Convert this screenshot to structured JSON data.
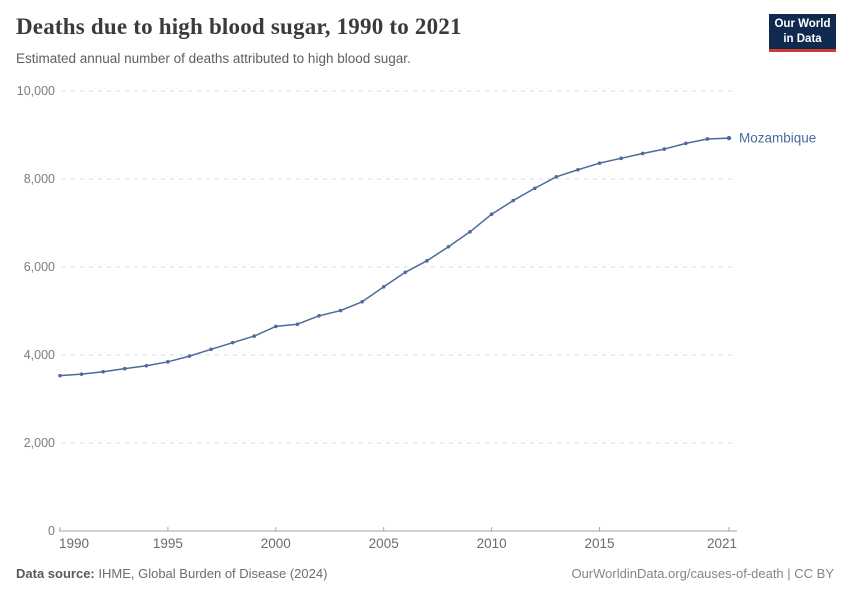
{
  "header": {
    "title": "Deaths due to high blood sugar, 1990 to 2021",
    "subtitle": "Estimated annual number of deaths attributed to high blood sugar."
  },
  "logo": {
    "line1": "Our World",
    "line2": "in Data",
    "bg_color": "#10294e",
    "accent_color": "#cf3a34"
  },
  "chart_data": {
    "type": "line",
    "title": "Deaths due to high blood sugar, 1990 to 2021",
    "subtitle": "Estimated annual number of deaths attributed to high blood sugar.",
    "xlabel": "",
    "ylabel": "",
    "xlim": [
      1990,
      2021
    ],
    "ylim": [
      0,
      10000
    ],
    "x_ticks": [
      1990,
      1995,
      2000,
      2005,
      2010,
      2015,
      2021
    ],
    "y_ticks": [
      0,
      2000,
      4000,
      6000,
      8000,
      10000
    ],
    "grid": "horizontal-dashed",
    "legend_position": "end-of-line",
    "x": [
      1990,
      1991,
      1992,
      1993,
      1994,
      1995,
      1996,
      1997,
      1998,
      1999,
      2000,
      2001,
      2002,
      2003,
      2004,
      2005,
      2006,
      2007,
      2008,
      2009,
      2010,
      2011,
      2012,
      2013,
      2014,
      2015,
      2016,
      2017,
      2018,
      2019,
      2020,
      2021
    ],
    "series": [
      {
        "name": "Mozambique",
        "color": "#4C6A9C",
        "values": [
          3530,
          3565,
          3620,
          3690,
          3755,
          3845,
          3975,
          4130,
          4280,
          4430,
          4650,
          4700,
          4890,
          5010,
          5210,
          5550,
          5880,
          6140,
          6460,
          6800,
          7200,
          7510,
          7790,
          8050,
          8210,
          8360,
          8470,
          8580,
          8680,
          8810,
          8910,
          8930
        ]
      }
    ]
  },
  "footer": {
    "source_label": "Data source:",
    "source_text": "IHME, Global Burden of Disease (2024)",
    "license": "OurWorldinData.org/causes-of-death | CC BY"
  }
}
